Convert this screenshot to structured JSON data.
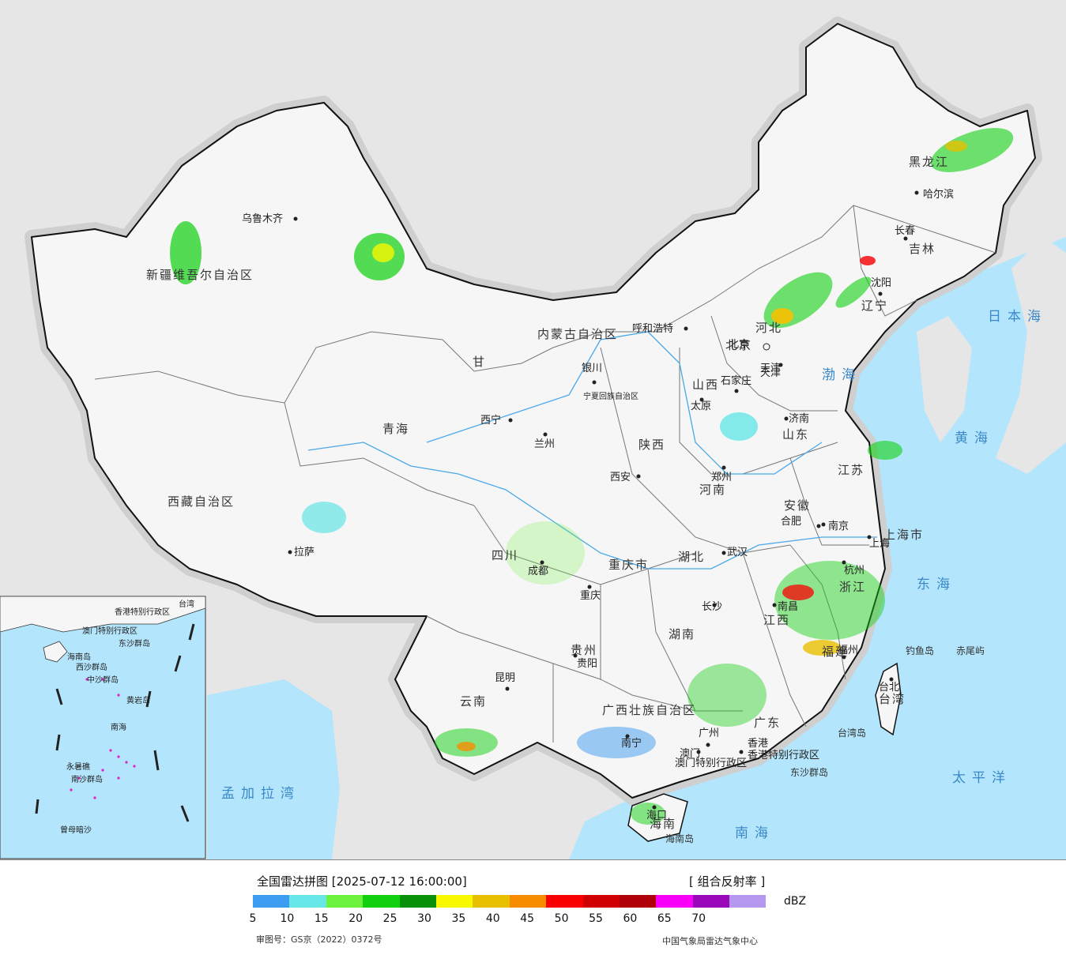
{
  "legend": {
    "title": "全国雷达拼图 [2025-07-12 16:00:00]",
    "product": "[ 组合反射率 ]",
    "unit": "dBZ",
    "ticks": [
      "5",
      "10",
      "15",
      "20",
      "25",
      "30",
      "35",
      "40",
      "45",
      "50",
      "55",
      "60",
      "65",
      "70"
    ],
    "colors": [
      "#3c9cf0",
      "#66e6e6",
      "#6cf23c",
      "#10d010",
      "#089008",
      "#f8f800",
      "#e8c000",
      "#f88c00",
      "#f80000",
      "#d00000",
      "#b00008",
      "#f800f8",
      "#9808b8",
      "#b498f0"
    ],
    "approval": "审图号：GS京（2022）0372号",
    "credit": "中国气象局雷达气象中心"
  },
  "provinces": [
    {
      "name": "新疆维吾尔自治区"
    },
    {
      "name": "西藏自治区"
    },
    {
      "name": "青海"
    },
    {
      "name": "甘"
    },
    {
      "name": "内蒙古自治区"
    },
    {
      "name": "黑龙江"
    },
    {
      "name": "吉林"
    },
    {
      "name": "辽宁"
    },
    {
      "name": "河北"
    },
    {
      "name": "山西"
    },
    {
      "name": "山东"
    },
    {
      "name": "陕西"
    },
    {
      "name": "河南"
    },
    {
      "name": "四川"
    },
    {
      "name": "重庆市"
    },
    {
      "name": "湖北"
    },
    {
      "name": "安徽"
    },
    {
      "name": "江苏"
    },
    {
      "name": "上海市"
    },
    {
      "name": "浙江"
    },
    {
      "name": "江西"
    },
    {
      "name": "湖南"
    },
    {
      "name": "贵州"
    },
    {
      "name": "云南"
    },
    {
      "name": "广西壮族自治区"
    },
    {
      "name": "广东"
    },
    {
      "name": "福建"
    },
    {
      "name": "台湾"
    },
    {
      "name": "海南"
    },
    {
      "name": "宁夏回族自治区"
    },
    {
      "name": "天津"
    },
    {
      "name": "北京"
    },
    {
      "name": "香港特别行政区"
    },
    {
      "name": "澳门特别行政区"
    }
  ],
  "cities": [
    "乌鲁木齐",
    "拉萨",
    "西宁",
    "兰州",
    "银川",
    "呼和浩特",
    "北京",
    "天津",
    "石家庄",
    "太原",
    "济南",
    "郑州",
    "西安",
    "成都",
    "重庆",
    "武汉",
    "合肥",
    "南京",
    "上海",
    "杭州",
    "南昌",
    "长沙",
    "福州",
    "贵阳",
    "昆明",
    "南宁",
    "广州",
    "香港",
    "澳门",
    "海口",
    "哈尔滨",
    "长春",
    "沈阳",
    "台北"
  ],
  "seas": [
    "日本海",
    "渤海",
    "黄海",
    "东海",
    "太平洋",
    "南海",
    "孟加拉湾"
  ],
  "islands": [
    "钓鱼岛",
    "赤尾屿",
    "台湾岛",
    "东沙群岛",
    "海南岛"
  ],
  "inset": {
    "labels": [
      "香港特别行政区",
      "澳门特别行政区",
      "东沙群岛",
      "海南岛",
      "西沙群岛",
      "中沙群岛",
      "黄岩岛",
      "南海",
      "永暑礁",
      "南沙群岛",
      "曾母暗沙",
      "台湾"
    ]
  }
}
